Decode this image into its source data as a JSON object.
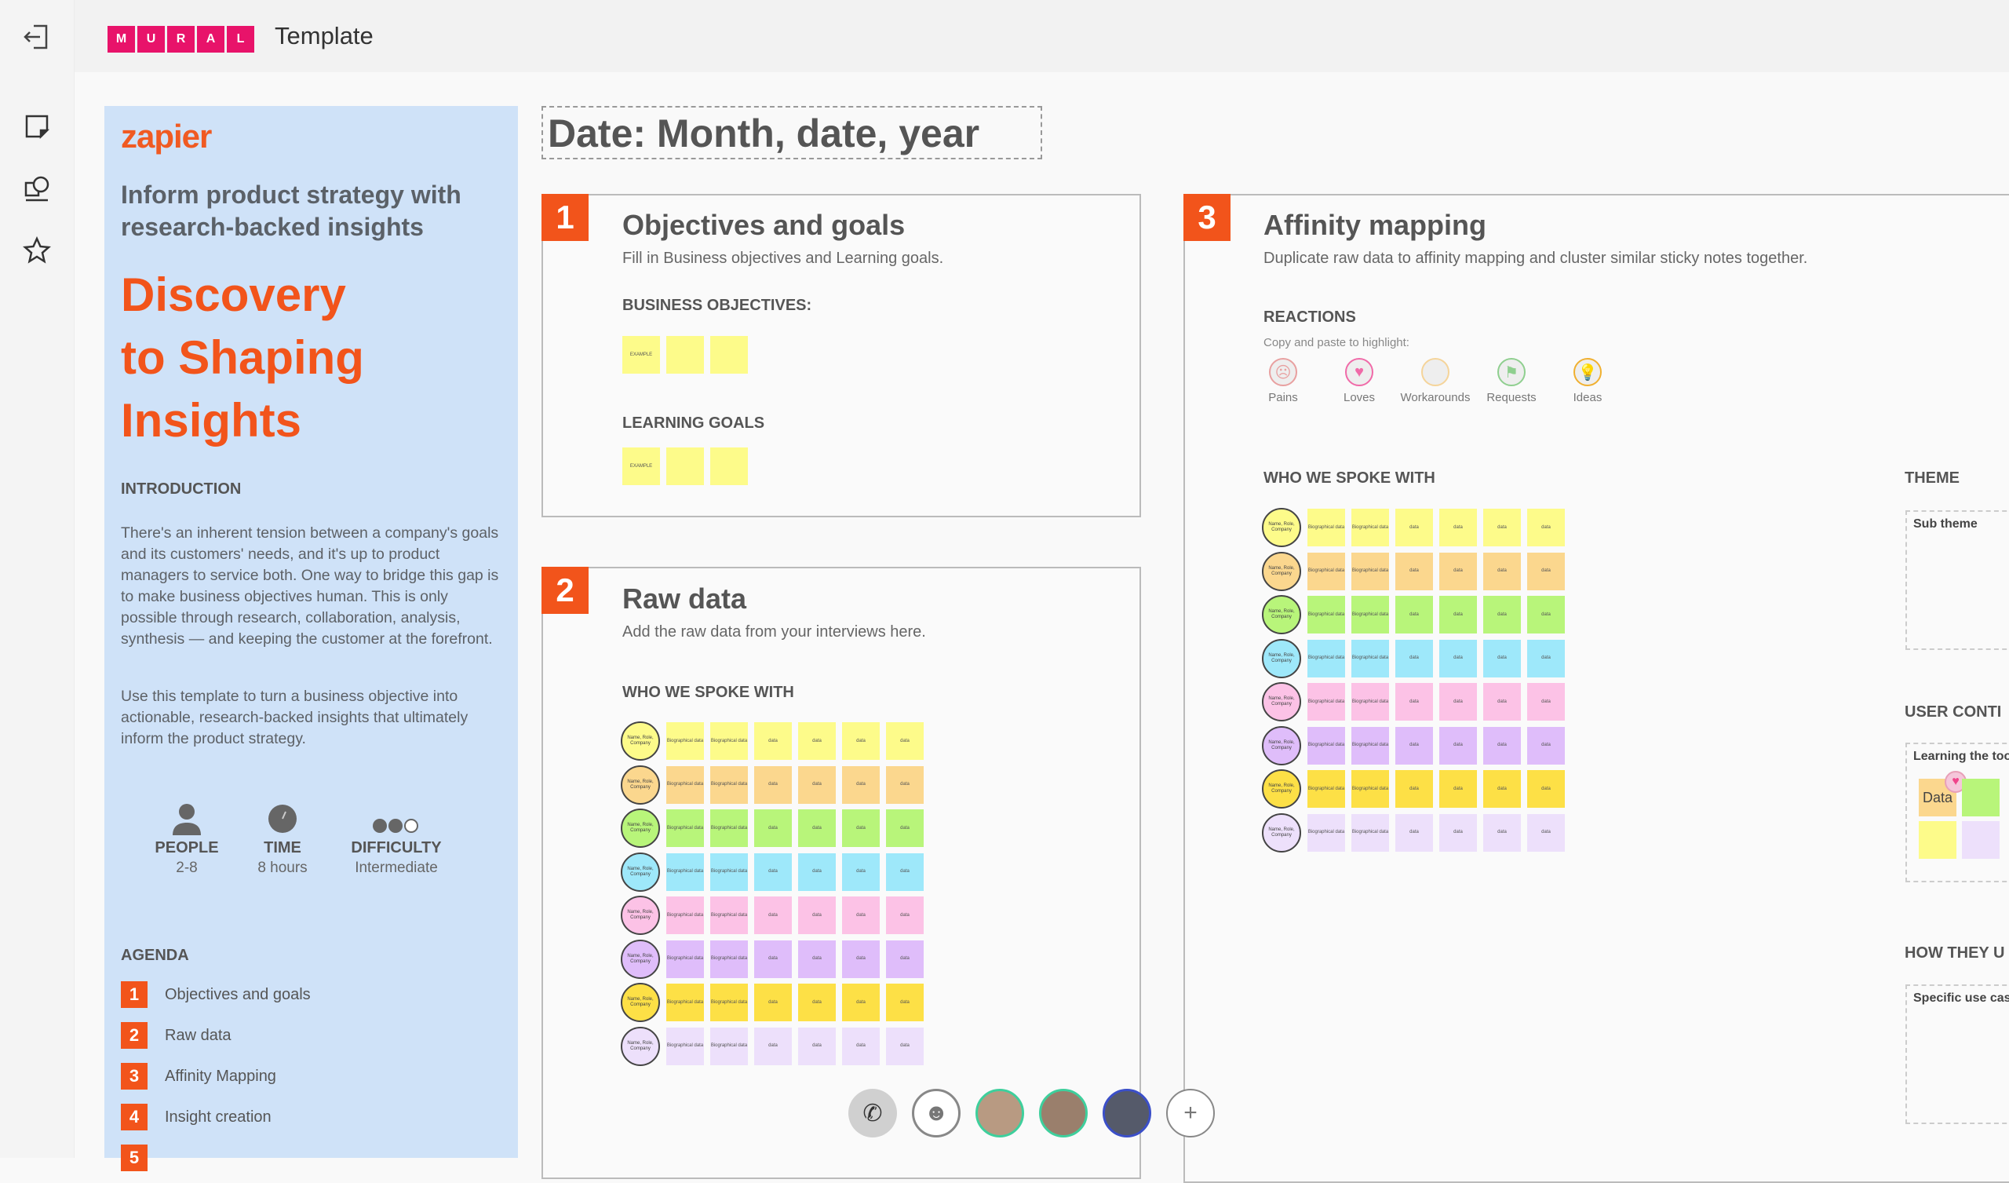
{
  "header": {
    "logo_letters": [
      "M",
      "U",
      "R",
      "A",
      "L"
    ],
    "title": "Template"
  },
  "panel": {
    "brand": "zapier",
    "subtitle": "Inform product strategy with research-backed insights",
    "title_lines": [
      "Discovery",
      "to Shaping",
      "Insights"
    ],
    "intro_heading": "INTRODUCTION",
    "intro_p1": "There's an inherent tension between a company's goals and its customers' needs, and it's up to product managers to service both. One way to bridge this gap is to make business objectives human. This is only possible through research, collaboration, analysis, synthesis — and keeping the customer at the forefront.",
    "intro_p2": "Use this template to turn a business objective into actionable, research-backed insights that ultimately inform the product strategy.",
    "stats": [
      {
        "label": "PEOPLE",
        "value": "2-8"
      },
      {
        "label": "TIME",
        "value": "8 hours"
      },
      {
        "label": "DIFFICULTY",
        "value": "Intermediate"
      }
    ],
    "agenda_heading": "AGENDA",
    "agenda": [
      {
        "n": "1",
        "label": "Objectives and goals"
      },
      {
        "n": "2",
        "label": "Raw data"
      },
      {
        "n": "3",
        "label": "Affinity Mapping"
      },
      {
        "n": "4",
        "label": "Insight creation"
      },
      {
        "n": "5",
        "label": ""
      }
    ]
  },
  "date_title": "Date: Month, date, year",
  "sec1": {
    "n": "1",
    "title": "Objectives and goals",
    "desc": "Fill in Business objectives and Learning goals.",
    "bo": "BUSINESS OBJECTIVES:",
    "lg": "LEARNING GOALS",
    "example": "EXAMPLE"
  },
  "sec2": {
    "n": "2",
    "title": "Raw data",
    "desc": "Add the raw data from your interviews here.",
    "who": "WHO WE SPOKE WITH"
  },
  "sec3": {
    "n": "3",
    "title": "Affinity mapping",
    "desc": "Duplicate raw data to affinity mapping and cluster similar sticky notes together.",
    "reactions": "REACTIONS",
    "copy": "Copy and paste to highlight:",
    "reaction_items": [
      {
        "label": "Pains",
        "icon": "pain-icon",
        "color": "#e8a0a0"
      },
      {
        "label": "Loves",
        "icon": "heart-icon",
        "color": "#f06aa8"
      },
      {
        "label": "Workarounds",
        "icon": "workaround-icon",
        "color": "#f5d49a"
      },
      {
        "label": "Requests",
        "icon": "request-icon",
        "color": "#8fcf8f"
      },
      {
        "label": "Ideas",
        "icon": "lightbulb-icon",
        "color": "#f0b030"
      }
    ],
    "who": "WHO WE SPOKE WITH",
    "theme": "THEME",
    "sub_theme": "Sub theme",
    "user_context": "USER CONTI",
    "learning": "Learning the too",
    "data_note": "Data",
    "how": "HOW THEY U",
    "use_case": "Specific use case"
  },
  "grid": {
    "person": "Name, Role, Company",
    "bio": "Biographical data",
    "data": "data",
    "row_colors": [
      "#fdfb8a",
      "#fbd78e",
      "#b8f57a",
      "#9ee8fa",
      "#fcc2e6",
      "#dfbdfa",
      "#fde046",
      "#ede0fb"
    ]
  },
  "sticky_color": "#fdfb8a",
  "accent": "#f2541b",
  "bottom_bar": [
    "phone-icon",
    "emoji-icon",
    "avatar-1",
    "avatar-2",
    "avatar-3",
    "add-icon"
  ]
}
